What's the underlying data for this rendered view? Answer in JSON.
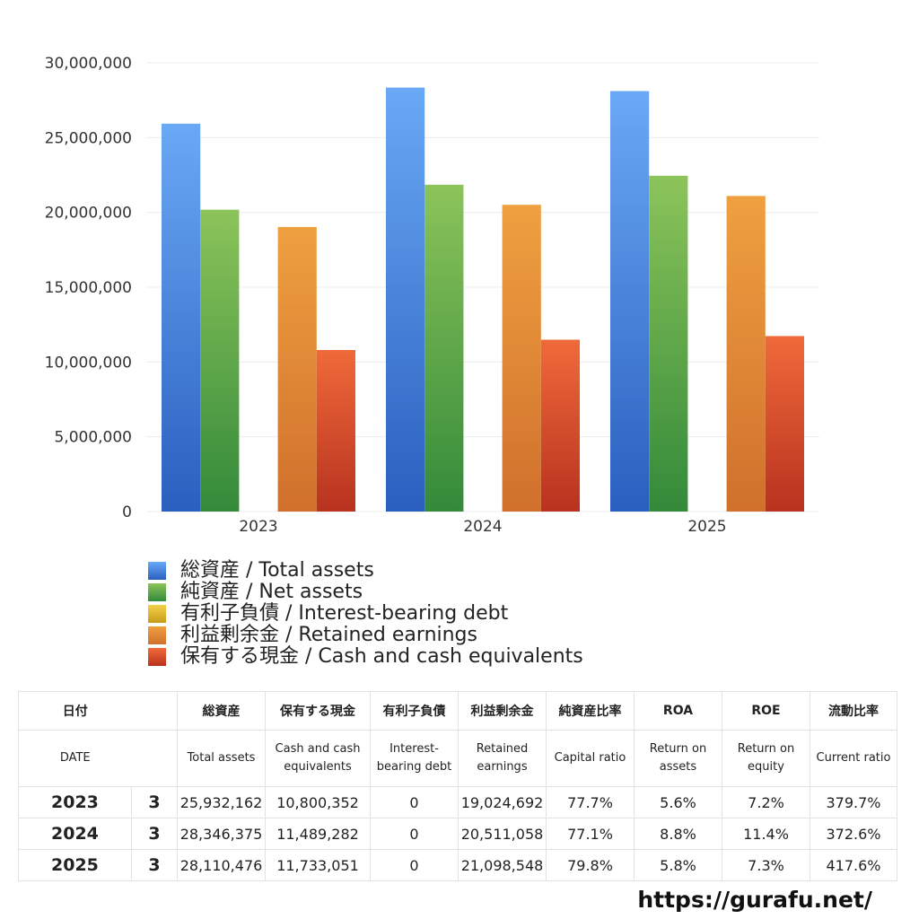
{
  "chart_data": {
    "type": "bar",
    "categories": [
      "2023",
      "2024",
      "2025"
    ],
    "series": [
      {
        "name": "総資産 / Total assets",
        "values": [
          25932162,
          28346375,
          28110476
        ],
        "color_top": "#6aa9f5",
        "color_bottom": "#2a5fbf"
      },
      {
        "name": "純資産 / Net assets",
        "values": [
          20180000,
          21850000,
          22450000
        ],
        "color_top": "#8cc45a",
        "color_bottom": "#338a3a"
      },
      {
        "name": "有利子負債 / Interest-bearing debt",
        "values": [
          0,
          0,
          0
        ],
        "color_top": "#f2d24a",
        "color_bottom": "#c99a1a"
      },
      {
        "name": "利益剰余金 / Retained earnings",
        "values": [
          19024692,
          20511058,
          21098548
        ],
        "color_top": "#efa040",
        "color_bottom": "#d0702c"
      },
      {
        "name": "保有する現金 /  Cash and cash equivalents",
        "values": [
          10800352,
          11489282,
          11733051
        ],
        "color_top": "#ef6a3a",
        "color_bottom": "#b8321f"
      }
    ],
    "y_ticks": [
      "0",
      "5,000,000",
      "10,000,000",
      "15,000,000",
      "20,000,000",
      "25,000,000",
      "30,000,000"
    ],
    "ylim": [
      0,
      30000000
    ],
    "grid": true,
    "legend_placement": "bottom"
  },
  "table": {
    "headers_jp": [
      "日付",
      "",
      "総資産",
      "保有する現金",
      "有利子負債",
      "利益剰余金",
      "純資産比率",
      "ROA",
      "ROE",
      "流動比率"
    ],
    "headers_en": [
      "DATE",
      "",
      "Total assets",
      "Cash and cash equivalents",
      "Interest-bearing debt",
      "Retained earnings",
      "Capital ratio",
      "Return on assets",
      "Return on equity",
      "Current ratio"
    ],
    "rows": [
      [
        "2023",
        "3",
        "25,932,162",
        "10,800,352",
        "0",
        "19,024,692",
        "77.7%",
        "5.6%",
        "7.2%",
        "379.7%"
      ],
      [
        "2024",
        "3",
        "28,346,375",
        "11,489,282",
        "0",
        "20,511,058",
        "77.1%",
        "8.8%",
        "11.4%",
        "372.6%"
      ],
      [
        "2025",
        "3",
        "28,110,476",
        "11,733,051",
        "0",
        "21,098,548",
        "79.8%",
        "5.8%",
        "7.3%",
        "417.6%"
      ]
    ]
  },
  "watermark": "https://gurafu.net/"
}
